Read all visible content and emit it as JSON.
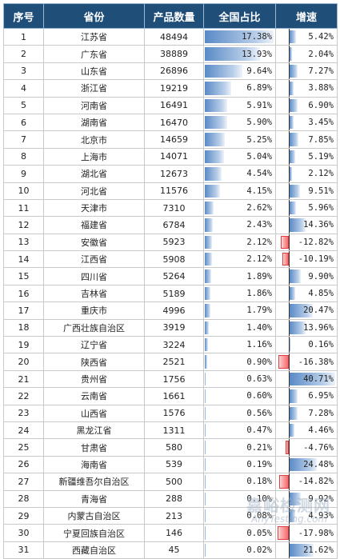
{
  "headers": {
    "rank": "序号",
    "province": "省份",
    "count": "产品数量",
    "share": "全国占比",
    "growth": "增速"
  },
  "colors": {
    "header_bg": "#1f4e79",
    "bar_positive": "#5a8ac6",
    "bar_negative": "#f8696b"
  },
  "rows": [
    {
      "rank": "1",
      "province": "江苏省",
      "count": "48494",
      "share": "17.38%",
      "share_value": 17.38,
      "growth": "5.42%",
      "growth_value": 5.42
    },
    {
      "rank": "2",
      "province": "广东省",
      "count": "38889",
      "share": "13.93%",
      "share_value": 13.93,
      "growth": "2.04%",
      "growth_value": 2.04
    },
    {
      "rank": "3",
      "province": "山东省",
      "count": "26896",
      "share": "9.64%",
      "share_value": 9.64,
      "growth": "7.27%",
      "growth_value": 7.27
    },
    {
      "rank": "4",
      "province": "浙江省",
      "count": "19219",
      "share": "6.89%",
      "share_value": 6.89,
      "growth": "3.88%",
      "growth_value": 3.88
    },
    {
      "rank": "5",
      "province": "河南省",
      "count": "16491",
      "share": "5.91%",
      "share_value": 5.91,
      "growth": "6.90%",
      "growth_value": 6.9
    },
    {
      "rank": "6",
      "province": "湖南省",
      "count": "16470",
      "share": "5.90%",
      "share_value": 5.9,
      "growth": "3.45%",
      "growth_value": 3.45
    },
    {
      "rank": "7",
      "province": "北京市",
      "count": "14659",
      "share": "5.25%",
      "share_value": 5.25,
      "growth": "7.85%",
      "growth_value": 7.85
    },
    {
      "rank": "8",
      "province": "上海市",
      "count": "14071",
      "share": "5.04%",
      "share_value": 5.04,
      "growth": "5.19%",
      "growth_value": 5.19
    },
    {
      "rank": "9",
      "province": "湖北省",
      "count": "12673",
      "share": "4.54%",
      "share_value": 4.54,
      "growth": "2.12%",
      "growth_value": 2.12
    },
    {
      "rank": "10",
      "province": "河北省",
      "count": "11576",
      "share": "4.15%",
      "share_value": 4.15,
      "growth": "9.51%",
      "growth_value": 9.51
    },
    {
      "rank": "11",
      "province": "天津市",
      "count": "7310",
      "share": "2.62%",
      "share_value": 2.62,
      "growth": "5.96%",
      "growth_value": 5.96
    },
    {
      "rank": "12",
      "province": "福建省",
      "count": "6784",
      "share": "2.43%",
      "share_value": 2.43,
      "growth": "14.36%",
      "growth_value": 14.36
    },
    {
      "rank": "13",
      "province": "安徽省",
      "count": "5923",
      "share": "2.12%",
      "share_value": 2.12,
      "growth": "-12.82%",
      "growth_value": -12.82
    },
    {
      "rank": "14",
      "province": "江西省",
      "count": "5908",
      "share": "2.12%",
      "share_value": 2.12,
      "growth": "-10.19%",
      "growth_value": -10.19
    },
    {
      "rank": "15",
      "province": "四川省",
      "count": "5264",
      "share": "1.89%",
      "share_value": 1.89,
      "growth": "9.90%",
      "growth_value": 9.9
    },
    {
      "rank": "16",
      "province": "吉林省",
      "count": "5189",
      "share": "1.86%",
      "share_value": 1.86,
      "growth": "4.85%",
      "growth_value": 4.85
    },
    {
      "rank": "17",
      "province": "重庆市",
      "count": "4996",
      "share": "1.79%",
      "share_value": 1.79,
      "growth": "20.47%",
      "growth_value": 20.47
    },
    {
      "rank": "18",
      "province": "广西壮族自治区",
      "count": "3919",
      "share": "1.40%",
      "share_value": 1.4,
      "growth": "13.96%",
      "growth_value": 13.96
    },
    {
      "rank": "19",
      "province": "辽宁省",
      "count": "3224",
      "share": "1.16%",
      "share_value": 1.16,
      "growth": "0.16%",
      "growth_value": 0.16
    },
    {
      "rank": "20",
      "province": "陕西省",
      "count": "2521",
      "share": "0.90%",
      "share_value": 0.9,
      "growth": "-16.38%",
      "growth_value": -16.38
    },
    {
      "rank": "21",
      "province": "贵州省",
      "count": "1756",
      "share": "0.63%",
      "share_value": 0.63,
      "growth": "40.71%",
      "growth_value": 40.71
    },
    {
      "rank": "22",
      "province": "云南省",
      "count": "1661",
      "share": "0.60%",
      "share_value": 0.6,
      "growth": "6.95%",
      "growth_value": 6.95
    },
    {
      "rank": "23",
      "province": "山西省",
      "count": "1576",
      "share": "0.56%",
      "share_value": 0.56,
      "growth": "7.28%",
      "growth_value": 7.28
    },
    {
      "rank": "24",
      "province": "黑龙江省",
      "count": "1311",
      "share": "0.47%",
      "share_value": 0.47,
      "growth": "4.46%",
      "growth_value": 4.46
    },
    {
      "rank": "25",
      "province": "甘肃省",
      "count": "580",
      "share": "0.21%",
      "share_value": 0.21,
      "growth": "-4.76%",
      "growth_value": -4.76
    },
    {
      "rank": "26",
      "province": "海南省",
      "count": "539",
      "share": "0.19%",
      "share_value": 0.19,
      "growth": "24.48%",
      "growth_value": 24.48
    },
    {
      "rank": "27",
      "province": "新疆维吾尔自治区",
      "count": "500",
      "share": "0.18%",
      "share_value": 0.18,
      "growth": "-14.82%",
      "growth_value": -14.82
    },
    {
      "rank": "28",
      "province": "青海省",
      "count": "288",
      "share": "0.10%",
      "share_value": 0.1,
      "growth": "9.92%",
      "growth_value": 9.92
    },
    {
      "rank": "29",
      "province": "内蒙古自治区",
      "count": "213",
      "share": "0.08%",
      "share_value": 0.08,
      "growth": "4.93%",
      "growth_value": 4.93
    },
    {
      "rank": "30",
      "province": "宁夏回族自治区",
      "count": "146",
      "share": "0.05%",
      "share_value": 0.05,
      "growth": "-17.98%",
      "growth_value": -17.98
    },
    {
      "rank": "31",
      "province": "西藏自治区",
      "count": "45",
      "share": "0.02%",
      "share_value": 0.02,
      "growth": "21.62%",
      "growth_value": 21.62
    }
  ],
  "watermark": {
    "main": "嘉峪检测网",
    "sub": "AnyTesting.com"
  }
}
